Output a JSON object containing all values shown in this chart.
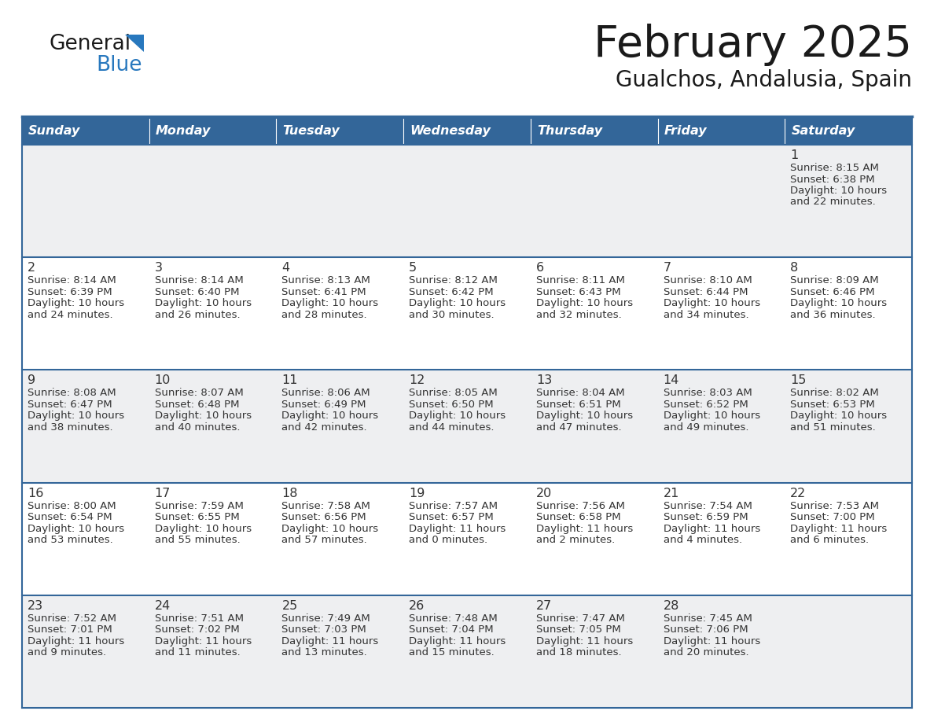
{
  "title": "February 2025",
  "subtitle": "Gualchos, Andalusia, Spain",
  "days_of_week": [
    "Sunday",
    "Monday",
    "Tuesday",
    "Wednesday",
    "Thursday",
    "Friday",
    "Saturday"
  ],
  "header_bg": "#336699",
  "header_text": "#ffffff",
  "row_bg_light": "#eeeff1",
  "row_bg_white": "#ffffff",
  "separator_color": "#336699",
  "text_color": "#333333",
  "day_number_color": "#333333",
  "logo_general_color": "#1a1a1a",
  "logo_blue_color": "#2878be",
  "logo_triangle_color": "#2878be",
  "calendar_data": [
    [
      null,
      null,
      null,
      null,
      null,
      null,
      {
        "day": 1,
        "sunrise": "8:15 AM",
        "sunset": "6:38 PM",
        "daylight_h": "10 hours",
        "daylight_m": "and 22 minutes."
      }
    ],
    [
      {
        "day": 2,
        "sunrise": "8:14 AM",
        "sunset": "6:39 PM",
        "daylight_h": "10 hours",
        "daylight_m": "and 24 minutes."
      },
      {
        "day": 3,
        "sunrise": "8:14 AM",
        "sunset": "6:40 PM",
        "daylight_h": "10 hours",
        "daylight_m": "and 26 minutes."
      },
      {
        "day": 4,
        "sunrise": "8:13 AM",
        "sunset": "6:41 PM",
        "daylight_h": "10 hours",
        "daylight_m": "and 28 minutes."
      },
      {
        "day": 5,
        "sunrise": "8:12 AM",
        "sunset": "6:42 PM",
        "daylight_h": "10 hours",
        "daylight_m": "and 30 minutes."
      },
      {
        "day": 6,
        "sunrise": "8:11 AM",
        "sunset": "6:43 PM",
        "daylight_h": "10 hours",
        "daylight_m": "and 32 minutes."
      },
      {
        "day": 7,
        "sunrise": "8:10 AM",
        "sunset": "6:44 PM",
        "daylight_h": "10 hours",
        "daylight_m": "and 34 minutes."
      },
      {
        "day": 8,
        "sunrise": "8:09 AM",
        "sunset": "6:46 PM",
        "daylight_h": "10 hours",
        "daylight_m": "and 36 minutes."
      }
    ],
    [
      {
        "day": 9,
        "sunrise": "8:08 AM",
        "sunset": "6:47 PM",
        "daylight_h": "10 hours",
        "daylight_m": "and 38 minutes."
      },
      {
        "day": 10,
        "sunrise": "8:07 AM",
        "sunset": "6:48 PM",
        "daylight_h": "10 hours",
        "daylight_m": "and 40 minutes."
      },
      {
        "day": 11,
        "sunrise": "8:06 AM",
        "sunset": "6:49 PM",
        "daylight_h": "10 hours",
        "daylight_m": "and 42 minutes."
      },
      {
        "day": 12,
        "sunrise": "8:05 AM",
        "sunset": "6:50 PM",
        "daylight_h": "10 hours",
        "daylight_m": "and 44 minutes."
      },
      {
        "day": 13,
        "sunrise": "8:04 AM",
        "sunset": "6:51 PM",
        "daylight_h": "10 hours",
        "daylight_m": "and 47 minutes."
      },
      {
        "day": 14,
        "sunrise": "8:03 AM",
        "sunset": "6:52 PM",
        "daylight_h": "10 hours",
        "daylight_m": "and 49 minutes."
      },
      {
        "day": 15,
        "sunrise": "8:02 AM",
        "sunset": "6:53 PM",
        "daylight_h": "10 hours",
        "daylight_m": "and 51 minutes."
      }
    ],
    [
      {
        "day": 16,
        "sunrise": "8:00 AM",
        "sunset": "6:54 PM",
        "daylight_h": "10 hours",
        "daylight_m": "and 53 minutes."
      },
      {
        "day": 17,
        "sunrise": "7:59 AM",
        "sunset": "6:55 PM",
        "daylight_h": "10 hours",
        "daylight_m": "and 55 minutes."
      },
      {
        "day": 18,
        "sunrise": "7:58 AM",
        "sunset": "6:56 PM",
        "daylight_h": "10 hours",
        "daylight_m": "and 57 minutes."
      },
      {
        "day": 19,
        "sunrise": "7:57 AM",
        "sunset": "6:57 PM",
        "daylight_h": "11 hours",
        "daylight_m": "and 0 minutes."
      },
      {
        "day": 20,
        "sunrise": "7:56 AM",
        "sunset": "6:58 PM",
        "daylight_h": "11 hours",
        "daylight_m": "and 2 minutes."
      },
      {
        "day": 21,
        "sunrise": "7:54 AM",
        "sunset": "6:59 PM",
        "daylight_h": "11 hours",
        "daylight_m": "and 4 minutes."
      },
      {
        "day": 22,
        "sunrise": "7:53 AM",
        "sunset": "7:00 PM",
        "daylight_h": "11 hours",
        "daylight_m": "and 6 minutes."
      }
    ],
    [
      {
        "day": 23,
        "sunrise": "7:52 AM",
        "sunset": "7:01 PM",
        "daylight_h": "11 hours",
        "daylight_m": "and 9 minutes."
      },
      {
        "day": 24,
        "sunrise": "7:51 AM",
        "sunset": "7:02 PM",
        "daylight_h": "11 hours",
        "daylight_m": "and 11 minutes."
      },
      {
        "day": 25,
        "sunrise": "7:49 AM",
        "sunset": "7:03 PM",
        "daylight_h": "11 hours",
        "daylight_m": "and 13 minutes."
      },
      {
        "day": 26,
        "sunrise": "7:48 AM",
        "sunset": "7:04 PM",
        "daylight_h": "11 hours",
        "daylight_m": "and 15 minutes."
      },
      {
        "day": 27,
        "sunrise": "7:47 AM",
        "sunset": "7:05 PM",
        "daylight_h": "11 hours",
        "daylight_m": "and 18 minutes."
      },
      {
        "day": 28,
        "sunrise": "7:45 AM",
        "sunset": "7:06 PM",
        "daylight_h": "11 hours",
        "daylight_m": "and 20 minutes."
      },
      null
    ]
  ]
}
